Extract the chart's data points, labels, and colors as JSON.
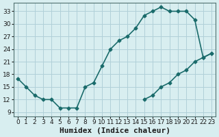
{
  "xlabel": "Humidex (Indice chaleur)",
  "ylabel": "",
  "bg_color": "#d8eef0",
  "line_color": "#1a6b6b",
  "grid_color": "#b0d0d8",
  "xlim": [
    -0.5,
    23.5
  ],
  "ylim": [
    8,
    35
  ],
  "yticks": [
    9,
    12,
    15,
    18,
    21,
    24,
    27,
    30,
    33
  ],
  "xticks": [
    0,
    1,
    2,
    3,
    4,
    5,
    6,
    7,
    8,
    9,
    10,
    11,
    12,
    13,
    14,
    15,
    16,
    17,
    18,
    19,
    20,
    21,
    22,
    23
  ],
  "line1_x": [
    0,
    1,
    2,
    3,
    4,
    5,
    6,
    7,
    8,
    9,
    10,
    11,
    12,
    13,
    14,
    15,
    16,
    17,
    18,
    19,
    20,
    21,
    22,
    23
  ],
  "line1_y": [
    17,
    15,
    13,
    12,
    12,
    10,
    10,
    10,
    15,
    16,
    20,
    24,
    26,
    27,
    29,
    32,
    33,
    34,
    33,
    33,
    33,
    31,
    22,
    23
  ],
  "line2_x": [
    0,
    1,
    2,
    3,
    4,
    5,
    6,
    7,
    8,
    9,
    10,
    11,
    12,
    13,
    14,
    15,
    16,
    17,
    18,
    19,
    20,
    21,
    22,
    23
  ],
  "line2_y": [
    null,
    null,
    null,
    null,
    null,
    null,
    null,
    null,
    null,
    null,
    null,
    null,
    null,
    null,
    null,
    12,
    13,
    15,
    16,
    18,
    19,
    21,
    22,
    23
  ],
  "fontsize_xlabel": 8,
  "fontsize_ticks": 6.5
}
